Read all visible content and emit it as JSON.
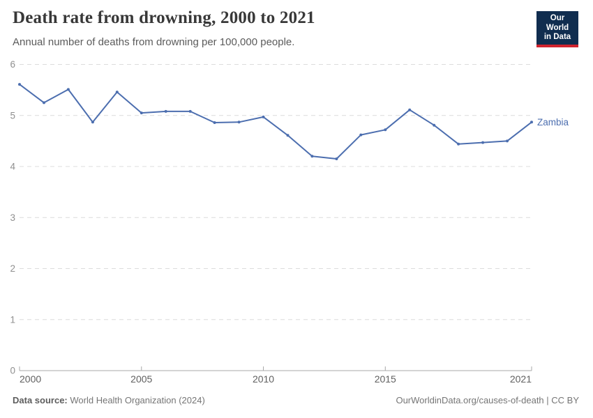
{
  "header": {
    "title": "Death rate from drowning, 2000 to 2021",
    "subtitle": "Annual number of deaths from drowning per 100,000 people.",
    "logo": {
      "line1": "Our World",
      "line2": "in Data",
      "bg_color": "#102d4f",
      "accent_color": "#d0232e"
    }
  },
  "chart_data": {
    "type": "line",
    "title": "Death rate from drowning, 2000 to 2021",
    "subtitle": "Annual number of deaths from drowning per 100,000 people.",
    "xlabel": "",
    "ylabel": "",
    "xlim": [
      2000,
      2021
    ],
    "ylim": [
      0,
      6
    ],
    "xticks": [
      2000,
      2005,
      2010,
      2015,
      2021
    ],
    "yticks": [
      0,
      1,
      2,
      3,
      4,
      5,
      6
    ],
    "grid": "horizontal-dashed",
    "legend_position": "end-of-line",
    "colors": {
      "line": "#4c6eaf",
      "gridline": "#dcdcdc",
      "axis": "#a8a8a8",
      "tick_label": "#8f8f8f",
      "x_tick_label": "#606060"
    },
    "series": [
      {
        "name": "Zambia",
        "color": "#4c6eaf",
        "x": [
          2000,
          2001,
          2002,
          2003,
          2004,
          2005,
          2006,
          2007,
          2008,
          2009,
          2010,
          2011,
          2012,
          2013,
          2014,
          2015,
          2016,
          2017,
          2018,
          2019,
          2020,
          2021
        ],
        "values": [
          5.61,
          5.25,
          5.51,
          4.87,
          5.46,
          5.05,
          5.08,
          5.08,
          4.86,
          4.87,
          4.97,
          4.61,
          4.2,
          4.15,
          4.62,
          4.72,
          5.11,
          4.81,
          4.44,
          4.47,
          4.5,
          4.87
        ]
      }
    ]
  },
  "footer": {
    "source_label": "Data source:",
    "source_value": "World Health Organization (2024)",
    "right_text": "OurWorldinData.org/causes-of-death | CC BY"
  }
}
